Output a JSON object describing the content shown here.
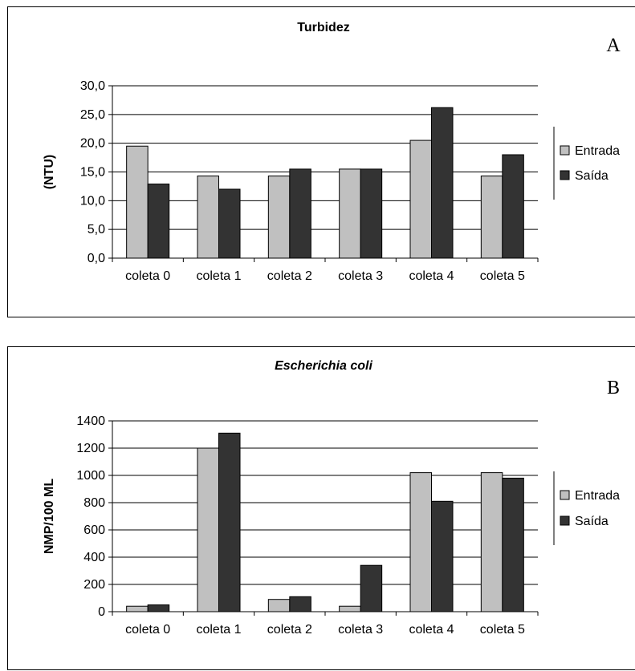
{
  "chart_data": [
    {
      "type": "bar",
      "panel_letter": "A",
      "title": "Turbidez",
      "title_italic": false,
      "ylabel": "(NTU)",
      "xlabel": "",
      "categories": [
        "coleta 0",
        "coleta 1",
        "coleta 2",
        "coleta 3",
        "coleta 4",
        "coleta 5"
      ],
      "series": [
        {
          "name": "Entrada",
          "color": "#c0c0c0",
          "values": [
            19.5,
            14.3,
            14.3,
            15.5,
            20.5,
            14.3
          ]
        },
        {
          "name": "Saída",
          "color": "#333333",
          "values": [
            12.9,
            12.0,
            15.5,
            15.5,
            26.2,
            18.0
          ]
        }
      ],
      "ylim": [
        0,
        30
      ],
      "yticks": [
        0,
        5,
        10,
        15,
        20,
        25,
        30
      ],
      "ytick_labels": [
        "0,0",
        "5,0",
        "10,0",
        "15,0",
        "20,0",
        "25,0",
        "30,0"
      ],
      "grid": true,
      "legend_position": "right"
    },
    {
      "type": "bar",
      "panel_letter": "B",
      "title": "Escherichia coli",
      "title_italic": true,
      "ylabel": "NMP/100 ML",
      "xlabel": "",
      "categories": [
        "coleta 0",
        "coleta 1",
        "coleta 2",
        "coleta 3",
        "coleta 4",
        "coleta 5"
      ],
      "series": [
        {
          "name": "Entrada",
          "color": "#c0c0c0",
          "values": [
            40,
            1200,
            90,
            40,
            1020,
            1020
          ]
        },
        {
          "name": "Saída",
          "color": "#333333",
          "values": [
            50,
            1310,
            110,
            340,
            810,
            980
          ]
        }
      ],
      "ylim": [
        0,
        1400
      ],
      "yticks": [
        0,
        200,
        400,
        600,
        800,
        1000,
        1200,
        1400
      ],
      "ytick_labels": [
        "0",
        "200",
        "400",
        "600",
        "800",
        "1000",
        "1200",
        "1400"
      ],
      "grid": true,
      "legend_position": "right"
    }
  ]
}
